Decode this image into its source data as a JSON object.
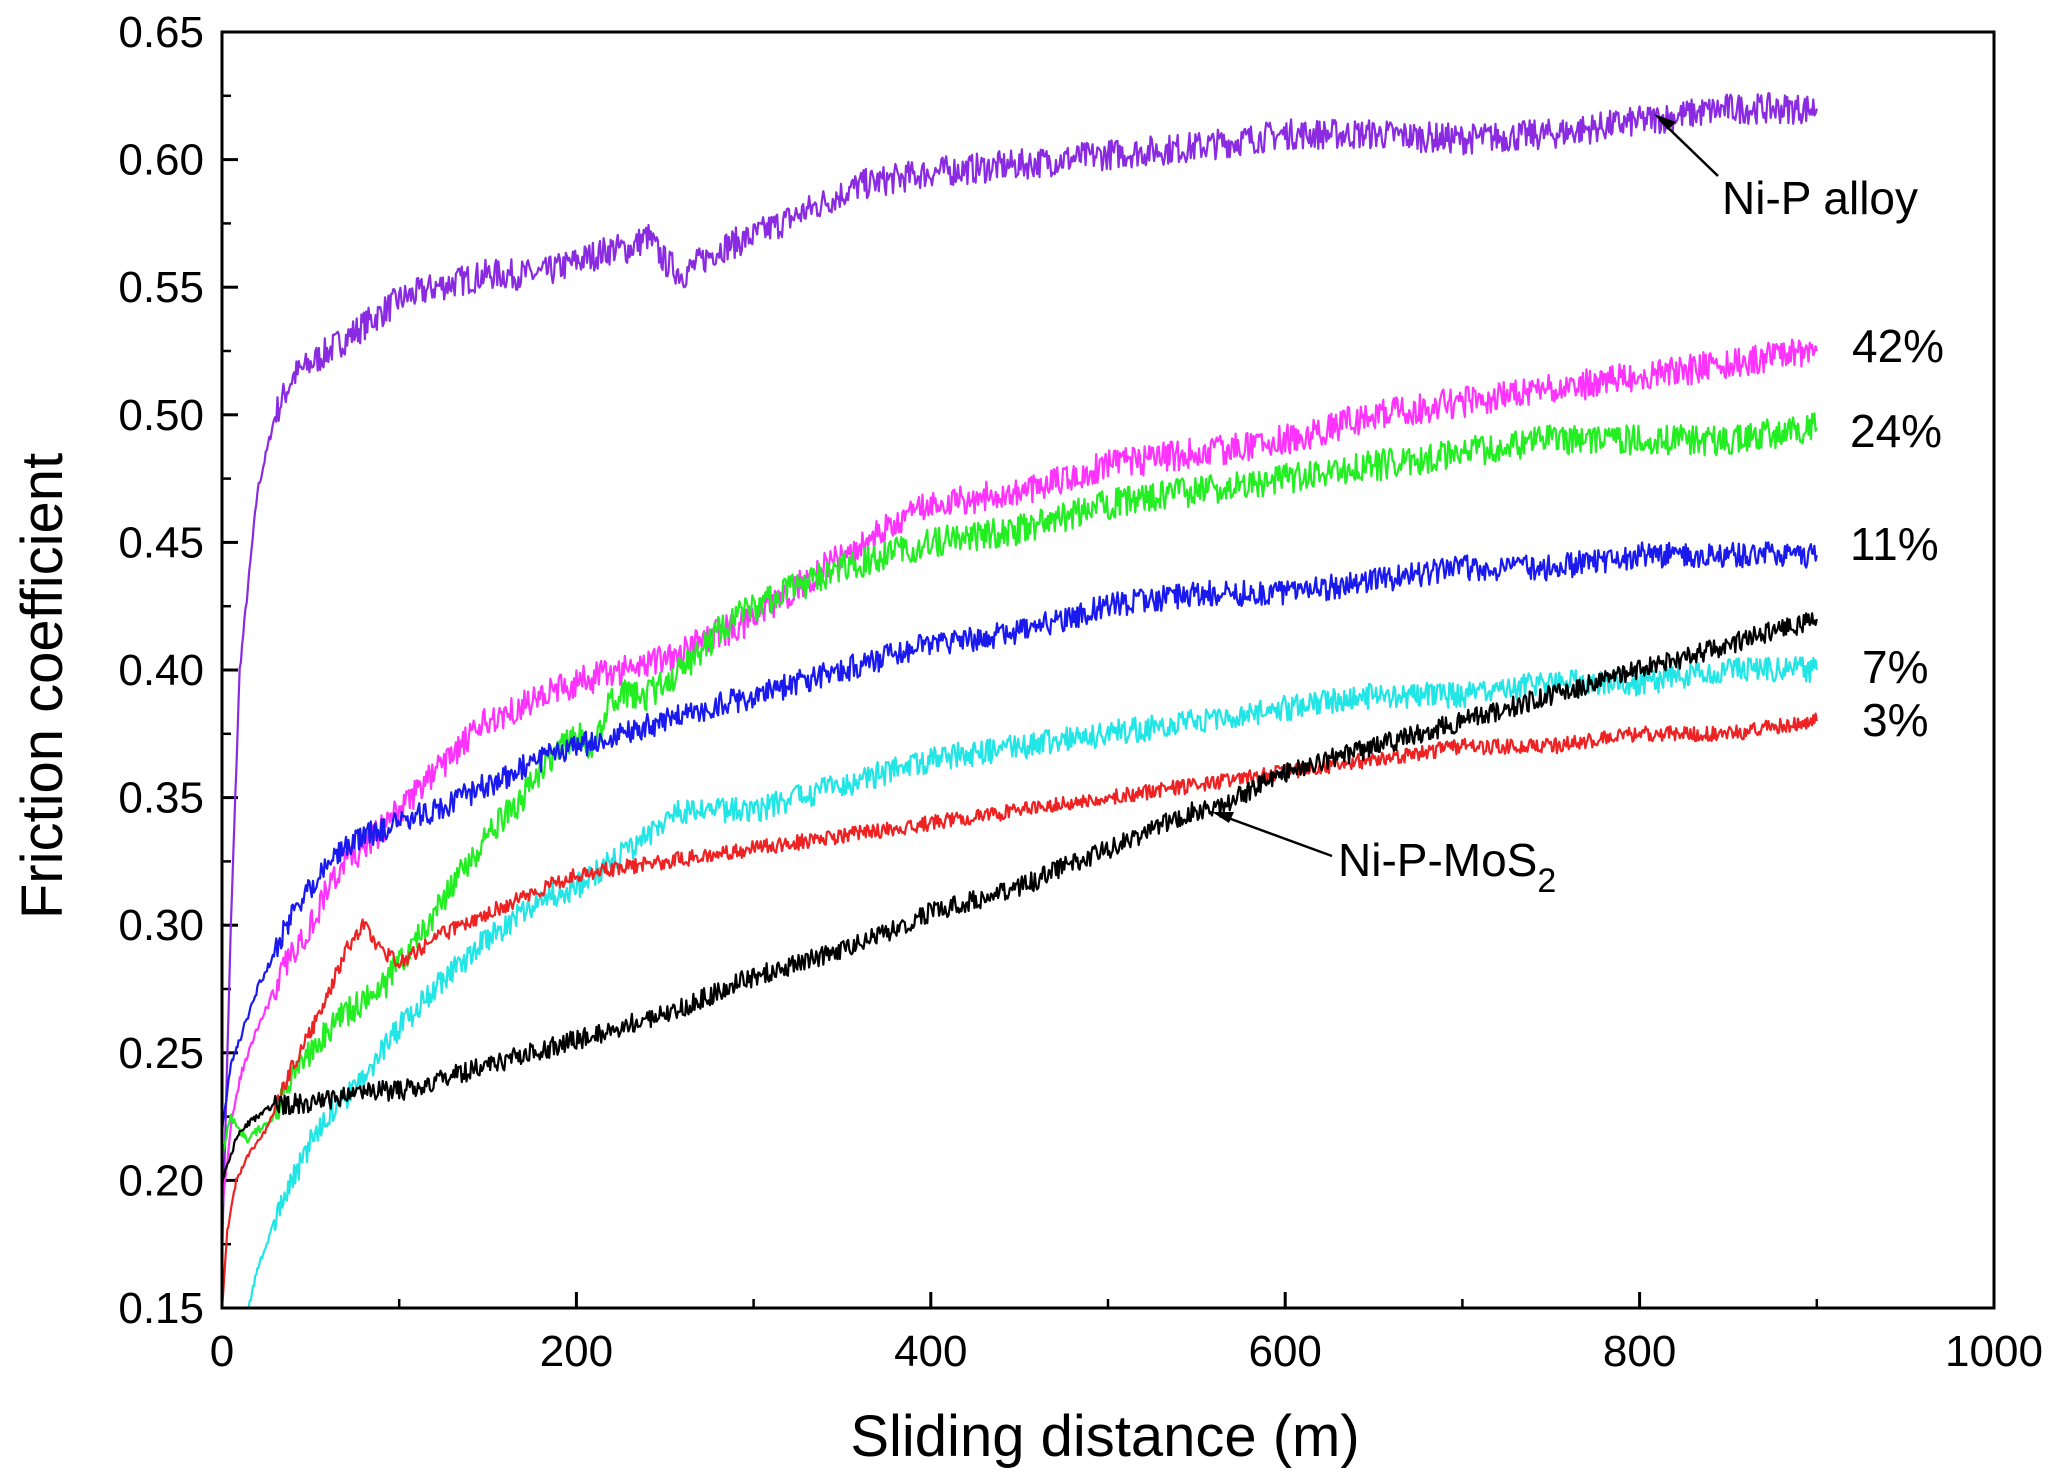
{
  "chart_data": {
    "type": "line",
    "title": "",
    "xlabel": "Sliding distance  (m)",
    "ylabel": "Friction coefficient",
    "xlim": [
      0,
      1000
    ],
    "ylim": [
      0.15,
      0.65
    ],
    "xticks": [
      "0",
      "200",
      "400",
      "600",
      "800",
      "1000"
    ],
    "yticks": [
      "0.15",
      "0.20",
      "0.25",
      "0.30",
      "0.35",
      "0.40",
      "0.45",
      "0.50",
      "0.55",
      "0.60",
      "0.65"
    ],
    "grid": false,
    "series": [
      {
        "name": "Ni-P alloy",
        "color": "#8a2be2",
        "noise": 0.006,
        "x": [
          0,
          5,
          10,
          20,
          30,
          40,
          50,
          60,
          80,
          100,
          120,
          150,
          180,
          200,
          220,
          230,
          240,
          250,
          260,
          280,
          300,
          330,
          360,
          400,
          450,
          500,
          550,
          600,
          650,
          700,
          750,
          800,
          850,
          900
        ],
        "y": [
          0.17,
          0.3,
          0.4,
          0.47,
          0.5,
          0.515,
          0.52,
          0.525,
          0.535,
          0.545,
          0.55,
          0.555,
          0.555,
          0.56,
          0.565,
          0.565,
          0.57,
          0.56,
          0.555,
          0.565,
          0.57,
          0.58,
          0.59,
          0.595,
          0.598,
          0.602,
          0.605,
          0.61,
          0.61,
          0.608,
          0.61,
          0.615,
          0.62,
          0.62
        ]
      },
      {
        "name": "42%",
        "color": "#ff33ff",
        "noise": 0.006,
        "x": [
          0,
          5,
          10,
          20,
          30,
          40,
          50,
          60,
          70,
          80,
          100,
          120,
          150,
          180,
          200,
          250,
          300,
          350,
          400,
          450,
          500,
          550,
          600,
          650,
          700,
          750,
          800,
          850,
          900
        ],
        "y": [
          0.19,
          0.22,
          0.24,
          0.26,
          0.275,
          0.29,
          0.3,
          0.315,
          0.325,
          0.33,
          0.345,
          0.36,
          0.38,
          0.39,
          0.395,
          0.405,
          0.42,
          0.445,
          0.465,
          0.47,
          0.48,
          0.485,
          0.49,
          0.5,
          0.505,
          0.51,
          0.515,
          0.52,
          0.525
        ]
      },
      {
        "name": "24%",
        "color": "#22ee22",
        "noise": 0.006,
        "x": [
          0,
          5,
          10,
          15,
          20,
          30,
          40,
          50,
          60,
          70,
          80,
          90,
          100,
          120,
          150,
          170,
          190,
          200,
          210,
          220,
          240,
          260,
          280,
          300,
          350,
          400,
          450,
          500,
          550,
          600,
          650,
          700,
          750,
          800,
          850,
          900
        ],
        "y": [
          0.21,
          0.225,
          0.22,
          0.215,
          0.22,
          0.225,
          0.24,
          0.25,
          0.26,
          0.265,
          0.27,
          0.275,
          0.285,
          0.305,
          0.335,
          0.35,
          0.37,
          0.375,
          0.37,
          0.39,
          0.39,
          0.4,
          0.415,
          0.425,
          0.44,
          0.45,
          0.455,
          0.465,
          0.47,
          0.475,
          0.48,
          0.485,
          0.49,
          0.49,
          0.49,
          0.495
        ]
      },
      {
        "name": "11%",
        "color": "#1a1aee",
        "noise": 0.005,
        "x": [
          0,
          5,
          10,
          20,
          30,
          40,
          50,
          60,
          80,
          100,
          120,
          150,
          180,
          200,
          250,
          300,
          350,
          400,
          450,
          500,
          550,
          600,
          650,
          700,
          750,
          800,
          850,
          900
        ],
        "y": [
          0.22,
          0.245,
          0.255,
          0.275,
          0.29,
          0.305,
          0.315,
          0.325,
          0.335,
          0.34,
          0.345,
          0.355,
          0.365,
          0.37,
          0.38,
          0.39,
          0.4,
          0.41,
          0.415,
          0.425,
          0.43,
          0.43,
          0.435,
          0.44,
          0.44,
          0.445,
          0.445,
          0.445
        ]
      },
      {
        "name": "7%",
        "color": "#22e5e5",
        "noise": 0.005,
        "x": [
          15,
          20,
          30,
          40,
          50,
          60,
          80,
          100,
          120,
          150,
          180,
          200,
          250,
          260,
          300,
          350,
          400,
          450,
          500,
          550,
          600,
          650,
          700,
          750,
          800,
          850,
          900
        ],
        "y": [
          0.15,
          0.165,
          0.185,
          0.2,
          0.215,
          0.225,
          0.24,
          0.26,
          0.275,
          0.295,
          0.31,
          0.315,
          0.34,
          0.345,
          0.345,
          0.355,
          0.365,
          0.37,
          0.375,
          0.38,
          0.385,
          0.39,
          0.39,
          0.395,
          0.395,
          0.4,
          0.4
        ]
      },
      {
        "name": "3%",
        "color": "#ee2222",
        "noise": 0.003,
        "x": [
          0,
          3,
          8,
          15,
          25,
          40,
          55,
          70,
          80,
          90,
          100,
          120,
          150,
          200,
          250,
          300,
          350,
          400,
          450,
          500,
          550,
          600,
          650,
          700,
          750,
          800,
          850,
          900
        ],
        "y": [
          0.15,
          0.18,
          0.2,
          0.21,
          0.22,
          0.245,
          0.265,
          0.29,
          0.3,
          0.29,
          0.285,
          0.295,
          0.305,
          0.32,
          0.325,
          0.33,
          0.335,
          0.34,
          0.345,
          0.35,
          0.355,
          0.36,
          0.365,
          0.37,
          0.37,
          0.375,
          0.375,
          0.38
        ]
      },
      {
        "name": "Ni-P-MoS2",
        "color": "#000000",
        "noise": 0.004,
        "x": [
          0,
          5,
          10,
          20,
          30,
          50,
          80,
          100,
          150,
          200,
          250,
          300,
          350,
          400,
          450,
          500,
          550,
          560,
          600,
          650,
          700,
          750,
          800,
          850,
          900
        ],
        "y": [
          0.2,
          0.21,
          0.22,
          0.225,
          0.23,
          0.23,
          0.235,
          0.235,
          0.245,
          0.255,
          0.265,
          0.28,
          0.29,
          0.305,
          0.315,
          0.33,
          0.345,
          0.345,
          0.36,
          0.37,
          0.38,
          0.39,
          0.4,
          0.41,
          0.42
        ]
      }
    ],
    "annotations": [
      {
        "text": "Ni-P alloy",
        "target_series": "Ni-P alloy",
        "arrow": true
      },
      {
        "text": "42%",
        "target_series": "42%"
      },
      {
        "text": "24%",
        "target_series": "24%"
      },
      {
        "text": "11%",
        "target_series": "11%"
      },
      {
        "text": "7%",
        "target_series": "7%"
      },
      {
        "text": "3%",
        "target_series": "3%"
      },
      {
        "text": "Ni-P-MoS",
        "subscript": "2",
        "target_series": "Ni-P-MoS2",
        "arrow": true
      }
    ]
  }
}
